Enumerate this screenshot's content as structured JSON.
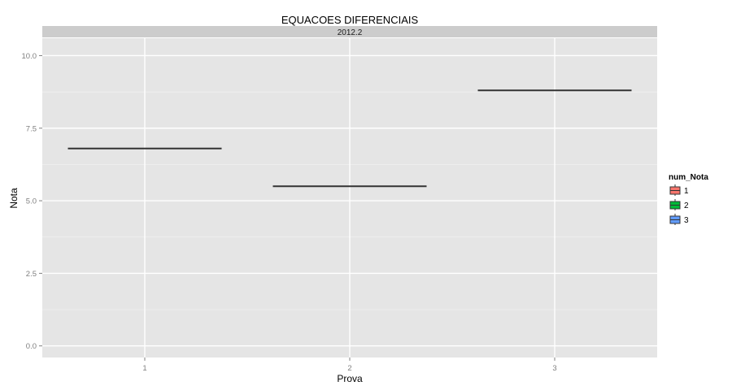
{
  "chart_data": {
    "type": "boxplot",
    "title": "EQUACOES DIFERENCIAIS",
    "facet_label": "2012.2",
    "xlabel": "Prova",
    "ylabel": "Nota",
    "categories": [
      "1",
      "2",
      "3"
    ],
    "ylim": [
      -0.4,
      10.6
    ],
    "yticks": [
      0,
      2.5,
      5,
      7.5,
      10
    ],
    "ytick_labels": [
      "0.0",
      "2.5",
      "5.0",
      "7.5",
      "10.0"
    ],
    "grid": true,
    "series": [
      {
        "category": "1",
        "value": 6.8,
        "fill": "#F8766D"
      },
      {
        "category": "2",
        "value": 5.5,
        "fill": "#00BA38"
      },
      {
        "category": "3",
        "value": 8.8,
        "fill": "#619CFF"
      }
    ],
    "legend": {
      "title": "num_Nota",
      "position": "right",
      "entries": [
        {
          "label": "1",
          "color": "#F8766D"
        },
        {
          "label": "2",
          "color": "#00BA38"
        },
        {
          "label": "3",
          "color": "#619CFF"
        }
      ]
    },
    "colors": {
      "panel_bg": "#E5E5E5",
      "strip_bg": "#CCCCCC",
      "grid_major": "#FFFFFF",
      "grid_minor": "#F2F2F2",
      "line": "#333333"
    }
  }
}
